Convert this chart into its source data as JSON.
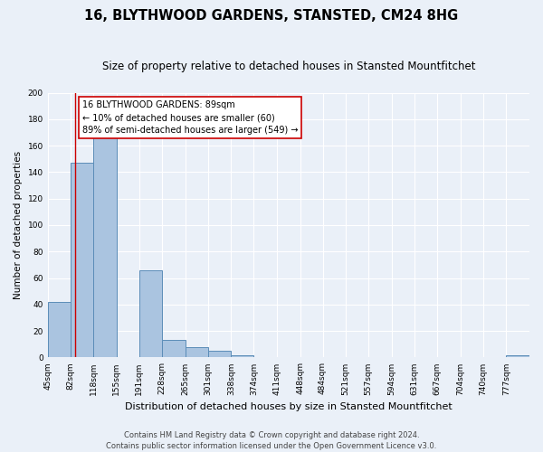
{
  "title": "16, BLYTHWOOD GARDENS, STANSTED, CM24 8HG",
  "subtitle": "Size of property relative to detached houses in Stansted Mountfitchet",
  "xlabel": "Distribution of detached houses by size in Stansted Mountfitchet",
  "ylabel": "Number of detached properties",
  "bin_labels": [
    "45sqm",
    "82sqm",
    "118sqm",
    "155sqm",
    "191sqm",
    "228sqm",
    "265sqm",
    "301sqm",
    "338sqm",
    "374sqm",
    "411sqm",
    "448sqm",
    "484sqm",
    "521sqm",
    "557sqm",
    "594sqm",
    "631sqm",
    "667sqm",
    "704sqm",
    "740sqm",
    "777sqm"
  ],
  "bin_edges": [
    45,
    82,
    118,
    155,
    191,
    228,
    265,
    301,
    338,
    374,
    411,
    448,
    484,
    521,
    557,
    594,
    631,
    667,
    704,
    740,
    777,
    814
  ],
  "bar_heights": [
    42,
    147,
    167,
    0,
    66,
    13,
    8,
    5,
    2,
    0,
    0,
    0,
    0,
    0,
    0,
    0,
    0,
    0,
    0,
    0,
    2
  ],
  "bar_color": "#aac4e0",
  "bar_edge_color": "#5b8db8",
  "ylim": [
    0,
    200
  ],
  "yticks": [
    0,
    20,
    40,
    60,
    80,
    100,
    120,
    140,
    160,
    180,
    200
  ],
  "property_line_x": 89,
  "property_line_color": "#cc0000",
  "annotation_text": "16 BLYTHWOOD GARDENS: 89sqm\n← 10% of detached houses are smaller (60)\n89% of semi-detached houses are larger (549) →",
  "annotation_box_color": "#ffffff",
  "annotation_box_edge_color": "#cc0000",
  "footnote1": "Contains HM Land Registry data © Crown copyright and database right 2024.",
  "footnote2": "Contains public sector information licensed under the Open Government Licence v3.0.",
  "background_color": "#eaf0f8",
  "plot_bg_color": "#eaf0f8",
  "grid_color": "#ffffff",
  "title_fontsize": 10.5,
  "subtitle_fontsize": 8.5,
  "xlabel_fontsize": 8,
  "ylabel_fontsize": 7.5,
  "tick_fontsize": 6.5,
  "footnote_fontsize": 6,
  "annotation_fontsize": 7
}
